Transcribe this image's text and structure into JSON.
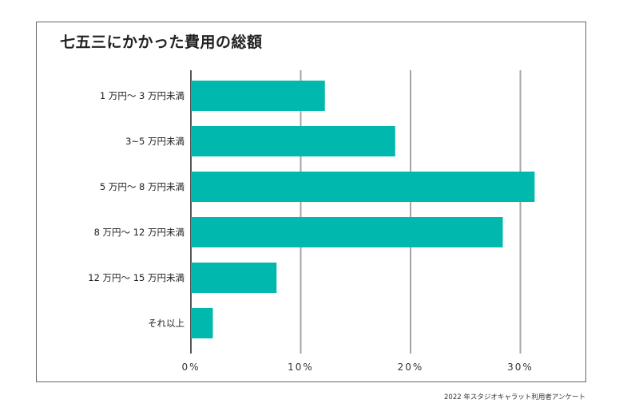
{
  "title": "七五三にかかった費用の総額",
  "source": "2022 年スタジオキャラット利用者アンケート",
  "colors": {
    "bar": "#00b8ad",
    "grid": "#a6a6a6",
    "axis": "#555555"
  },
  "chart_data": {
    "type": "bar",
    "orientation": "horizontal",
    "title": "七五三にかかった費用の総額",
    "categories": [
      "1 万円～ 3 万円未満",
      "3~5 万円未満",
      "5 万円～ 8 万円未満",
      "8 万円～ 12 万円未満",
      "12 万円～ 15 万円未満",
      "それ以上"
    ],
    "values": [
      12.2,
      18.6,
      31.3,
      28.4,
      7.8,
      2.0
    ],
    "xticks": [
      "0%",
      "10%",
      "20%",
      "30%"
    ],
    "xlim": [
      0,
      30
    ],
    "grid": true,
    "legend": "none"
  }
}
